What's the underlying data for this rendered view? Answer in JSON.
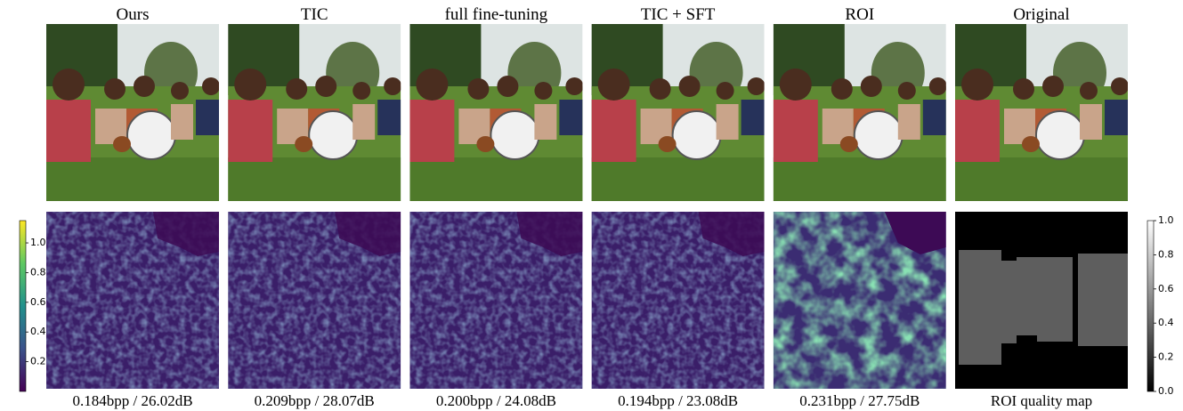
{
  "columns": [
    {
      "title": "Ours",
      "caption": "0.184bpp / 26.02dB"
    },
    {
      "title": "TIC",
      "caption": "0.209bpp / 28.07dB"
    },
    {
      "title": "full fine-tuning",
      "caption": "0.200bpp / 24.08dB"
    },
    {
      "title": "TIC + SFT",
      "caption": "0.194bpp / 23.08dB"
    },
    {
      "title": "ROI",
      "caption": "0.231bpp / 27.75dB"
    },
    {
      "title": "Original",
      "caption": "ROI quality map"
    }
  ],
  "colorbars": [
    {
      "lim": [
        0,
        1.15
      ],
      "ticks": [
        0.2,
        0.4,
        0.6,
        0.8,
        {
          "value": 1,
          "label": "1.0"
        }
      ]
    },
    {
      "lim": [
        0,
        1
      ],
      "ticks": [
        {
          "value": 0,
          "label": "0.0"
        },
        0.2,
        0.4,
        0.6,
        0.8,
        {
          "value": 1,
          "label": "1.0"
        }
      ]
    }
  ]
}
